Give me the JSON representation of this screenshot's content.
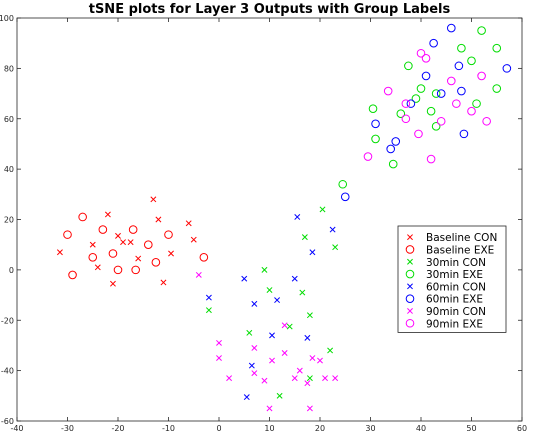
{
  "chart_data": {
    "type": "scatter",
    "title": "tSNE plots for Layer 3 Outputs with Group Labels",
    "xlabel": "",
    "ylabel": "",
    "xlim": [
      -40,
      60
    ],
    "ylim": [
      -60,
      100
    ],
    "xticks": [
      -40,
      -30,
      -20,
      -10,
      0,
      10,
      20,
      30,
      40,
      50,
      60
    ],
    "yticks": [
      -60,
      -40,
      -20,
      0,
      20,
      40,
      60,
      80,
      100
    ],
    "grid": false,
    "legend_position": "right",
    "series": [
      {
        "name": "Baseline CON",
        "marker": "x",
        "color": "#ff0000",
        "x": [
          -31.5,
          -25,
          -22,
          -20,
          -13,
          -12,
          -17.5,
          -16,
          -19,
          -24,
          -11,
          -21,
          -9.5,
          -6,
          -5
        ],
        "y": [
          7,
          10,
          22,
          13.5,
          28,
          20,
          11,
          4.5,
          11,
          1,
          -5,
          -5.5,
          6.5,
          18.5,
          12
        ]
      },
      {
        "name": "Baseline EXE",
        "marker": "o",
        "color": "#ff0000",
        "x": [
          -30,
          -27,
          -25,
          -23,
          -21,
          -17,
          -14,
          -10,
          -29,
          -20,
          -16.5,
          -12.5,
          -3
        ],
        "y": [
          14,
          21,
          5,
          16,
          6.5,
          16,
          10,
          14,
          -2,
          0,
          0,
          3,
          5
        ]
      },
      {
        "name": "30min CON",
        "marker": "x",
        "color": "#00dd00",
        "x": [
          -2,
          9,
          6,
          10,
          14,
          16.5,
          22,
          23,
          17,
          18,
          20.5,
          18,
          12
        ],
        "y": [
          -16,
          0,
          -25,
          -8,
          -22.5,
          -9,
          -32,
          9,
          13,
          -18,
          24,
          -43,
          -50
        ]
      },
      {
        "name": "30min EXE",
        "marker": "o",
        "color": "#00dd00",
        "x": [
          24.5,
          30.5,
          31,
          36,
          37.5,
          40,
          39,
          43,
          42,
          43,
          48,
          50,
          52,
          51,
          55,
          55,
          34.5
        ],
        "y": [
          34,
          64,
          52,
          62,
          81,
          72,
          68,
          70,
          63,
          57,
          88,
          83,
          95,
          66,
          72,
          88,
          42
        ]
      },
      {
        "name": "60min CON",
        "marker": "x",
        "color": "#0000ff",
        "x": [
          -2,
          5,
          7,
          10.5,
          15,
          15.5,
          22.5,
          6.5,
          18.5,
          17.5,
          11.5,
          5.5
        ],
        "y": [
          -11,
          -3.5,
          -13.5,
          -26,
          -3.5,
          21,
          16,
          -38,
          7,
          -27,
          -12,
          -50.5
        ]
      },
      {
        "name": "60min EXE",
        "marker": "o",
        "color": "#0000ff",
        "x": [
          25,
          31,
          34,
          38,
          41,
          42.5,
          44,
          46,
          48,
          47.5,
          48.5,
          57,
          35
        ],
        "y": [
          29,
          58,
          48,
          66,
          77,
          90,
          70,
          96,
          71,
          81,
          54,
          80,
          51
        ]
      },
      {
        "name": "90min CON",
        "marker": "x",
        "color": "#ff00ff",
        "x": [
          -4,
          0,
          0,
          2,
          7,
          7,
          9,
          10.5,
          13,
          15,
          16,
          17.5,
          18.5,
          21,
          23,
          13,
          18,
          10,
          20
        ],
        "y": [
          -2,
          -29,
          -35,
          -43,
          -31,
          -41,
          -44,
          -36,
          -33,
          -43,
          -40,
          -45,
          -35,
          -43,
          -43,
          -22,
          -55,
          -55,
          -36
        ]
      },
      {
        "name": "90min EXE",
        "marker": "o",
        "color": "#ff00ff",
        "x": [
          29.5,
          33.5,
          37,
          37,
          39.5,
          41,
          42,
          44,
          46,
          47,
          50,
          52,
          53,
          40
        ],
        "y": [
          45,
          71,
          66,
          60,
          54,
          84,
          44,
          59,
          75,
          66,
          63,
          77,
          59,
          86
        ]
      }
    ]
  }
}
